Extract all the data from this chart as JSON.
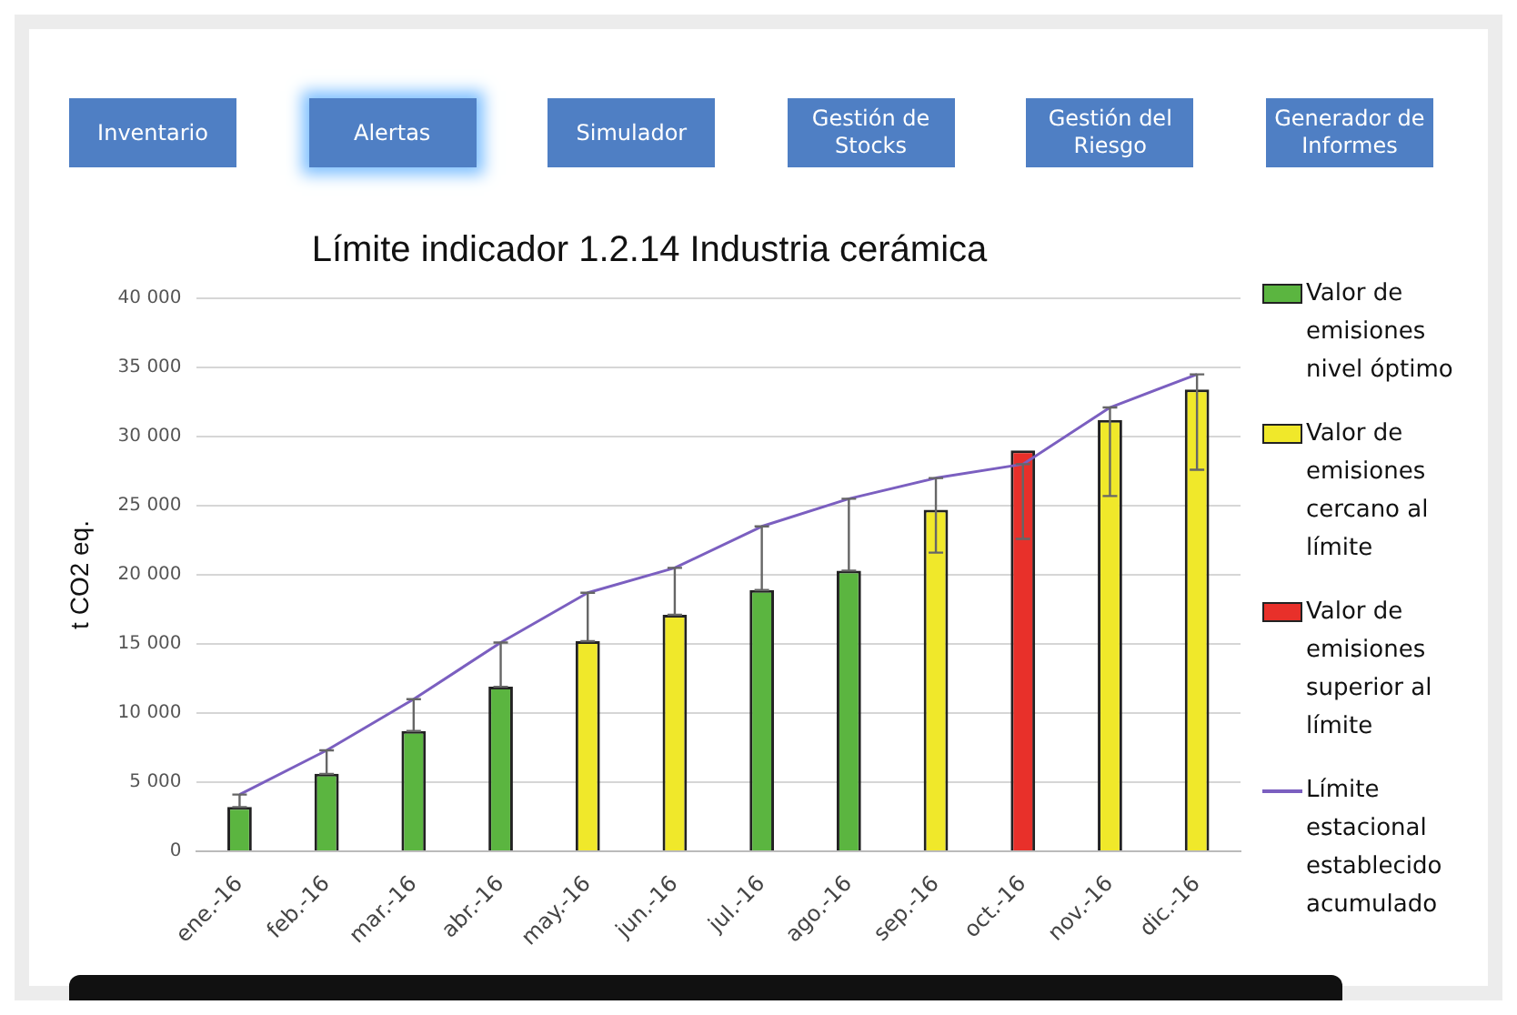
{
  "chart_data": {
    "type": "bar",
    "title": "Límite indicador 1.2.14 Industria cerámica",
    "ylabel": "t CO2 eq.",
    "annotations": [
      "Inventario",
      "Alertas",
      "Simulador",
      "Gestión de Stocks",
      "Gestión del Riesgo",
      "Generador de Informes"
    ],
    "categories": [
      "ene.-16",
      "feb.-16",
      "mar.-16",
      "abr.-16",
      "may.-16",
      "jun.-16",
      "jul.-16",
      "ago.-16",
      "sep.-16",
      "oct.-16",
      "nov.-16",
      "dic.-16"
    ],
    "series": [
      {
        "name": "Valor de emisiones nivel óptimo",
        "color": "#5bb540",
        "values": [
          3200,
          5600,
          8700,
          11900,
          null,
          null,
          18900,
          20300,
          null,
          null,
          null,
          null
        ],
        "errors": [
          [
            3200,
            4100
          ],
          [
            5600,
            7300
          ],
          [
            8700,
            11000
          ],
          [
            11900,
            15100
          ],
          null,
          null,
          [
            18900,
            23500
          ],
          [
            20300,
            25500
          ],
          null,
          null,
          null,
          null
        ]
      },
      {
        "name": "Valor de emisiones cercano al límite",
        "color": "#f0e82a",
        "values": [
          null,
          null,
          null,
          null,
          15200,
          17100,
          null,
          null,
          24700,
          null,
          31200,
          33400
        ],
        "errors": [
          null,
          null,
          null,
          null,
          [
            15200,
            18700
          ],
          [
            17100,
            20500
          ],
          null,
          null,
          [
            21600,
            27000
          ],
          null,
          [
            25700,
            32100
          ],
          [
            27600,
            34500
          ]
        ]
      },
      {
        "name": "Valor de emisiones superior al límite",
        "color": "#e8302a",
        "values": [
          null,
          null,
          null,
          null,
          null,
          null,
          null,
          null,
          null,
          29000,
          null,
          null
        ],
        "errors": [
          null,
          null,
          null,
          null,
          null,
          null,
          null,
          null,
          null,
          [
            22600,
            28000
          ],
          null,
          null
        ]
      },
      {
        "name": "Límite estacional establecido acumulado",
        "type": "line",
        "color": "#7b5fc0",
        "values": [
          4100,
          7300,
          11000,
          15100,
          18700,
          20500,
          23500,
          25500,
          27000,
          28000,
          32100,
          34500
        ]
      }
    ],
    "ylim": [
      0,
      40000
    ],
    "yticks": [
      {
        "value": 0,
        "label": "0"
      },
      {
        "value": 5000,
        "label": "5 000"
      },
      {
        "value": 10000,
        "label": "10 000"
      },
      {
        "value": 15000,
        "label": "15 000"
      },
      {
        "value": 20000,
        "label": "20 000"
      },
      {
        "value": 25000,
        "label": "25 000"
      },
      {
        "value": 30000,
        "label": "30 000"
      },
      {
        "value": 35000,
        "label": "35 000"
      },
      {
        "value": 40000,
        "label": "40 000"
      }
    ],
    "grid": "y",
    "legend": "right",
    "marker": "none"
  }
}
